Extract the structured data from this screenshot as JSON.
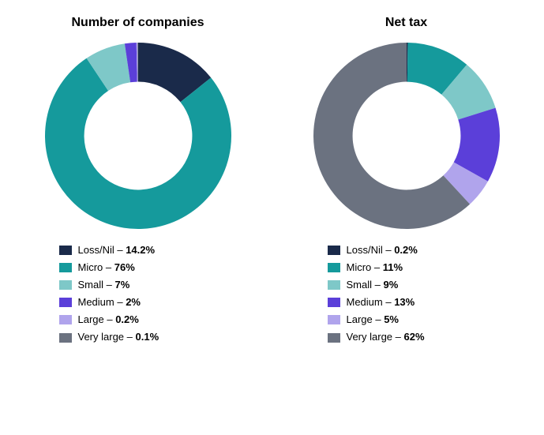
{
  "categories": [
    {
      "key": "loss_nil",
      "label": "Loss/Nil",
      "color": "#1a2a4a"
    },
    {
      "key": "micro",
      "label": "Micro",
      "color": "#159a9c"
    },
    {
      "key": "small",
      "label": "Small",
      "color": "#7ec8c8"
    },
    {
      "key": "medium",
      "label": "Medium",
      "color": "#5b3fd9"
    },
    {
      "key": "large",
      "label": "Large",
      "color": "#b0a4ec"
    },
    {
      "key": "very_large",
      "label": "Very large",
      "color": "#6b7280"
    }
  ],
  "charts": [
    {
      "id": "companies",
      "title": "Number of companies",
      "type": "donut",
      "start_angle_deg": 0,
      "inner_radius_ratio": 0.58,
      "background_color": "#ffffff",
      "title_fontsize": 16,
      "legend_fontsize": 13,
      "data": {
        "loss_nil": {
          "value": 14.2,
          "display": "14.2%"
        },
        "micro": {
          "value": 76,
          "display": "76%"
        },
        "small": {
          "value": 7,
          "display": "7%"
        },
        "medium": {
          "value": 2,
          "display": "2%"
        },
        "large": {
          "value": 0.2,
          "display": "0.2%"
        },
        "very_large": {
          "value": 0.1,
          "display": "0.1%"
        }
      }
    },
    {
      "id": "net_tax",
      "title": "Net tax",
      "type": "donut",
      "start_angle_deg": 0,
      "inner_radius_ratio": 0.58,
      "background_color": "#ffffff",
      "title_fontsize": 16,
      "legend_fontsize": 13,
      "data": {
        "loss_nil": {
          "value": 0.2,
          "display": "0.2%"
        },
        "micro": {
          "value": 11,
          "display": "11%"
        },
        "small": {
          "value": 9,
          "display": "9%"
        },
        "medium": {
          "value": 13,
          "display": "13%"
        },
        "large": {
          "value": 5,
          "display": "5%"
        },
        "very_large": {
          "value": 62,
          "display": "62%"
        }
      }
    }
  ]
}
